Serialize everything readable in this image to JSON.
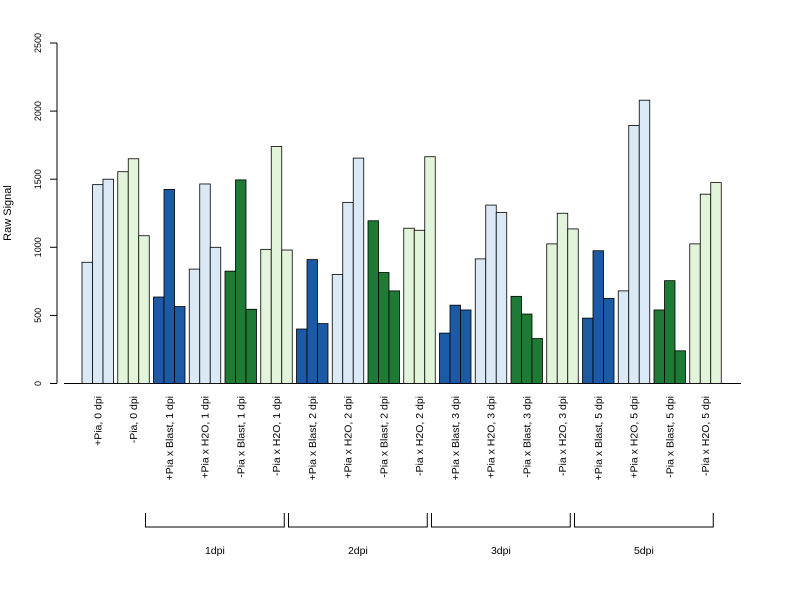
{
  "chart_data": {
    "type": "bar",
    "title": "",
    "xlabel": "",
    "ylabel": "Raw Signal",
    "ylim": [
      0,
      2500
    ],
    "yticks": [
      0,
      500,
      1000,
      1500,
      2000,
      2500
    ],
    "grid": false,
    "legend": "none",
    "categories": [
      "+Pia, 0 dpi",
      "-Pia, 0 dpi",
      "+Pia x Blast, 1 dpi",
      "+Pia x H2O, 1 dpi",
      "-Pia x Blast, 1 dpi",
      "-Pia x H2O, 1 dpi",
      "+Pia x Blast, 2 dpi",
      "+Pia x H2O, 2 dpi",
      "-Pia x Blast, 2 dpi",
      "-Pia x H2O, 2 dpi",
      "+Pia x Blast, 3 dpi",
      "+Pia x H2O, 3 dpi",
      "-Pia x Blast, 3 dpi",
      "-Pia x H2O, 3 dpi",
      "+Pia x Blast, 5 dpi",
      "+Pia x H2O, 5 dpi",
      "-Pia x Blast, 5 dpi",
      "-Pia x H2O, 5 dpi"
    ],
    "category_colors": [
      "#dbe8f6",
      "#e2f5da",
      "#1c5aa6",
      "#dbe8f6",
      "#1f7a35",
      "#e2f5da",
      "#1c5aa6",
      "#dbe8f6",
      "#1f7a35",
      "#e2f5da",
      "#1c5aa6",
      "#dbe8f6",
      "#1f7a35",
      "#e2f5da",
      "#1c5aa6",
      "#dbe8f6",
      "#1f7a35",
      "#e2f5da"
    ],
    "values": [
      [
        890,
        1460,
        1500
      ],
      [
        1555,
        1650,
        1085
      ],
      [
        635,
        1425,
        565
      ],
      [
        840,
        1465,
        1000
      ],
      [
        825,
        1495,
        545
      ],
      [
        985,
        1740,
        980
      ],
      [
        400,
        910,
        440
      ],
      [
        800,
        1330,
        1655
      ],
      [
        1195,
        815,
        680
      ],
      [
        1140,
        1125,
        1665
      ],
      [
        370,
        575,
        540
      ],
      [
        915,
        1310,
        1255
      ],
      [
        640,
        510,
        330
      ],
      [
        1025,
        1250,
        1135
      ],
      [
        480,
        975,
        625
      ],
      [
        680,
        1895,
        2080
      ],
      [
        540,
        755,
        240
      ],
      [
        1025,
        1390,
        1475
      ]
    ],
    "groups": [
      {
        "label": "1dpi",
        "from": 2,
        "to": 5
      },
      {
        "label": "2dpi",
        "from": 6,
        "to": 9
      },
      {
        "label": "3dpi",
        "from": 10,
        "to": 13
      },
      {
        "label": "5dpi",
        "from": 14,
        "to": 17
      }
    ]
  }
}
